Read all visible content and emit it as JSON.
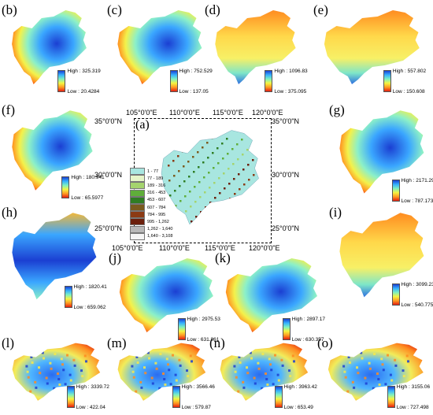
{
  "panels": [
    {
      "id": "b",
      "label": "(b)",
      "high": "High : 325.319",
      "low": "Low : 20.4284"
    },
    {
      "id": "c",
      "label": "(c)",
      "high": "High : 752.529",
      "low": "Low : 137.05"
    },
    {
      "id": "d",
      "label": "(d)",
      "high": "High : 1096.83",
      "low": "Low : 375.095"
    },
    {
      "id": "e",
      "label": "(e)",
      "high": "High : 557.802",
      "low": "Low : 150.608"
    },
    {
      "id": "f",
      "label": "(f)",
      "high": "High : 180.941",
      "low": "Low : 65.5977"
    },
    {
      "id": "g",
      "label": "(g)",
      "high": "High : 2171.29",
      "low": "Low : 787.173"
    },
    {
      "id": "h",
      "label": "(h)",
      "high": "High : 1820.41",
      "low": "Low : 659.062"
    },
    {
      "id": "i",
      "label": "(i)",
      "high": "High : 3099.23",
      "low": "Low : 540.775"
    },
    {
      "id": "j",
      "label": "(j)",
      "high": "High : 2975.53",
      "low": "Low : 631.861"
    },
    {
      "id": "k",
      "label": "(k)",
      "high": "High : 2897.17",
      "low": "Low : 630.357"
    },
    {
      "id": "l",
      "label": "(l)",
      "high": "High : 3339.72",
      "low": "Low : 422.04"
    },
    {
      "id": "m",
      "label": "(m)",
      "high": "High : 3566.46",
      "low": "Low : 579.87"
    },
    {
      "id": "n",
      "label": "(n)",
      "high": "High : 3963.42",
      "low": "Low : 653.49"
    },
    {
      "id": "o",
      "label": "(o)",
      "high": "High : 3155.06",
      "low": "Low : 727.498"
    }
  ],
  "center": {
    "label": "(a)",
    "top_ticks": [
      "105°0'0\"E",
      "110°0'0\"E",
      "115°0'0\"E",
      "120°0'0\"E"
    ],
    "bottom_ticks": [
      "105°0'0\"E",
      "110°0'0\"E",
      "115°0'0\"E",
      "120°0'0\"E"
    ],
    "left_ticks": [
      "35°0'0\"N",
      "30°0'0\"N",
      "25°0'0\"N"
    ],
    "right_ticks": [
      "35°0'0\"N",
      "30°0'0\"N",
      "25°0'0\"N"
    ],
    "elevation_legend": [
      {
        "range": "1 - 77",
        "color": "#a8e6e0"
      },
      {
        "range": "77 - 189",
        "color": "#e6f5c8"
      },
      {
        "range": "189 - 316",
        "color": "#a5d46e"
      },
      {
        "range": "316 - 453",
        "color": "#5fae3a"
      },
      {
        "range": "453 - 607",
        "color": "#2f7d23"
      },
      {
        "range": "607 - 784",
        "color": "#7a5a1e"
      },
      {
        "range": "784 - 995",
        "color": "#8b3a14"
      },
      {
        "range": "995 - 1,262",
        "color": "#6b1f0c"
      },
      {
        "range": "1,262 - 1,640",
        "color": "#b9b9b9"
      },
      {
        "range": "1,640 - 3,108",
        "color": "#f5f5f5"
      }
    ]
  }
}
